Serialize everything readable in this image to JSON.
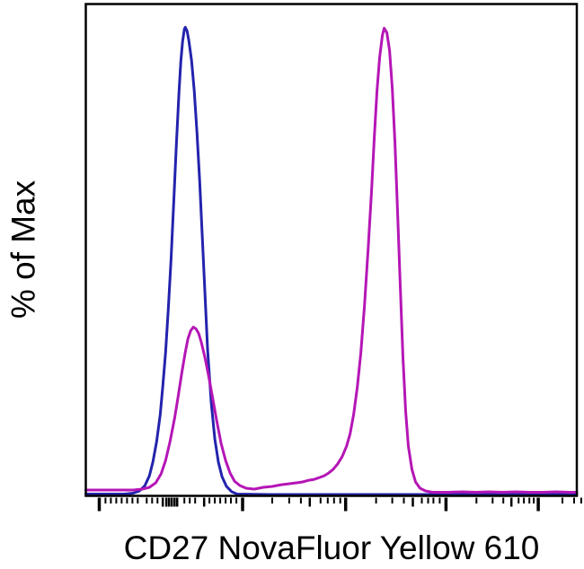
{
  "figure": {
    "background_color": "#ffffff",
    "frame_color": "#000000",
    "text_color": "#000000"
  },
  "chart_data": {
    "type": "line",
    "variant": "flow-cytometry-histogram-overlay",
    "title": "",
    "xlabel": "CD27 NovaFluor Yellow 610",
    "ylabel": "% of Max",
    "ylim": [
      0,
      100
    ],
    "grid": false,
    "legend": null,
    "x_axis": {
      "scale": "biexponential-log (no numeric tick labels shown)",
      "tick_labels": [],
      "ticks": [
        {
          "x": 2.74,
          "s": "major"
        },
        {
          "x": 4.01,
          "s": "minor"
        },
        {
          "x": 5.11,
          "s": "minor"
        },
        {
          "x": 6.2,
          "s": "minor"
        },
        {
          "x": 7.3,
          "s": "minor"
        },
        {
          "x": 8.39,
          "s": "minor"
        },
        {
          "x": 9.49,
          "s": "minor"
        },
        {
          "x": 10.58,
          "s": "minor"
        },
        {
          "x": 12.41,
          "s": "minor"
        },
        {
          "x": 13.5,
          "s": "minor"
        },
        {
          "x": 14.6,
          "s": "minor"
        },
        {
          "x": 15.69,
          "s": "mid"
        },
        {
          "x": 16.42,
          "s": "mid"
        },
        {
          "x": 16.97,
          "s": "mid"
        },
        {
          "x": 17.52,
          "s": "mid"
        },
        {
          "x": 18.07,
          "s": "mid"
        },
        {
          "x": 18.61,
          "s": "mid"
        },
        {
          "x": 20.07,
          "s": "minor"
        },
        {
          "x": 21.17,
          "s": "minor"
        },
        {
          "x": 22.26,
          "s": "minor"
        },
        {
          "x": 24.09,
          "s": "mid"
        },
        {
          "x": 25.18,
          "s": "minor"
        },
        {
          "x": 26.28,
          "s": "minor"
        },
        {
          "x": 27.37,
          "s": "minor"
        },
        {
          "x": 28.47,
          "s": "minor"
        },
        {
          "x": 29.56,
          "s": "minor"
        },
        {
          "x": 30.66,
          "s": "minor"
        },
        {
          "x": 31.93,
          "s": "major"
        },
        {
          "x": 37.96,
          "s": "minor"
        },
        {
          "x": 41.42,
          "s": "minor"
        },
        {
          "x": 43.8,
          "s": "minor"
        },
        {
          "x": 45.62,
          "s": "mid"
        },
        {
          "x": 47.81,
          "s": "minor"
        },
        {
          "x": 49.27,
          "s": "minor"
        },
        {
          "x": 50.55,
          "s": "minor"
        },
        {
          "x": 51.82,
          "s": "minor"
        },
        {
          "x": 52.92,
          "s": "major"
        },
        {
          "x": 59.12,
          "s": "minor"
        },
        {
          "x": 62.41,
          "s": "minor"
        },
        {
          "x": 64.78,
          "s": "minor"
        },
        {
          "x": 66.61,
          "s": "mid"
        },
        {
          "x": 68.43,
          "s": "minor"
        },
        {
          "x": 69.71,
          "s": "minor"
        },
        {
          "x": 70.8,
          "s": "minor"
        },
        {
          "x": 72.08,
          "s": "minor"
        },
        {
          "x": 73.36,
          "s": "major"
        },
        {
          "x": 79.56,
          "s": "minor"
        },
        {
          "x": 82.85,
          "s": "minor"
        },
        {
          "x": 85.04,
          "s": "minor"
        },
        {
          "x": 86.68,
          "s": "mid"
        },
        {
          "x": 88.14,
          "s": "minor"
        },
        {
          "x": 89.23,
          "s": "minor"
        },
        {
          "x": 90.33,
          "s": "minor"
        },
        {
          "x": 91.24,
          "s": "minor"
        },
        {
          "x": 92.15,
          "s": "major"
        },
        {
          "x": 97.08,
          "s": "minor"
        },
        {
          "x": 99.45,
          "s": "minor"
        },
        {
          "x": 100.9,
          "s": "minor"
        }
      ]
    },
    "series": [
      {
        "id": "blue",
        "name": "blue histogram (single left peak, ~95% of max at ~20% of axis)",
        "color": "#2323AD",
        "stroke_width": 3,
        "points": [
          [
            0,
            0.45
          ],
          [
            7.85,
            0.45
          ],
          [
            9.67,
            0.64
          ],
          [
            10.95,
            1.09
          ],
          [
            12.04,
            2.18
          ],
          [
            12.96,
            4.18
          ],
          [
            13.69,
            7.09
          ],
          [
            14.42,
            11.09
          ],
          [
            15.15,
            16.55
          ],
          [
            15.69,
            22.36
          ],
          [
            16.24,
            29.27
          ],
          [
            16.79,
            38.0
          ],
          [
            17.34,
            47.82
          ],
          [
            17.88,
            59.09
          ],
          [
            18.43,
            71.09
          ],
          [
            18.98,
            82.0
          ],
          [
            19.34,
            88.18
          ],
          [
            19.71,
            92.36
          ],
          [
            20.07,
            94.91
          ],
          [
            20.26,
            95.27
          ],
          [
            20.62,
            94.55
          ],
          [
            20.99,
            92.55
          ],
          [
            21.53,
            88.55
          ],
          [
            22.08,
            82.36
          ],
          [
            22.63,
            74.0
          ],
          [
            23.18,
            64.18
          ],
          [
            23.72,
            52.91
          ],
          [
            24.27,
            41.27
          ],
          [
            24.82,
            29.64
          ],
          [
            25.55,
            19.09
          ],
          [
            26.28,
            11.64
          ],
          [
            27.01,
            6.91
          ],
          [
            27.74,
            4.0
          ],
          [
            28.65,
            2.0
          ],
          [
            29.74,
            0.91
          ],
          [
            30.84,
            0.45
          ],
          [
            37.41,
            0.36
          ],
          [
            100,
            0.36
          ]
        ]
      },
      {
        "id": "magenta",
        "name": "magenta histogram (small left peak ~34% of max, tall right peak ~95% of max at ~61% of axis)",
        "color": "#B516B6",
        "stroke_width": 3,
        "points": [
          [
            0,
            1.27
          ],
          [
            9.67,
            1.27
          ],
          [
            11.5,
            1.45
          ],
          [
            12.96,
            1.82
          ],
          [
            14.23,
            2.73
          ],
          [
            15.33,
            4.55
          ],
          [
            16.24,
            7.27
          ],
          [
            17.15,
            11.09
          ],
          [
            18.07,
            15.82
          ],
          [
            18.8,
            20.18
          ],
          [
            19.53,
            24.91
          ],
          [
            20.26,
            29.27
          ],
          [
            20.8,
            32.0
          ],
          [
            21.35,
            33.64
          ],
          [
            21.9,
            34.36
          ],
          [
            22.45,
            34.0
          ],
          [
            22.99,
            33.09
          ],
          [
            23.54,
            31.27
          ],
          [
            24.27,
            28.18
          ],
          [
            25.0,
            24.55
          ],
          [
            25.73,
            20.55
          ],
          [
            26.64,
            15.45
          ],
          [
            27.55,
            10.73
          ],
          [
            28.47,
            7.27
          ],
          [
            29.38,
            4.73
          ],
          [
            30.29,
            3.09
          ],
          [
            31.39,
            2.18
          ],
          [
            32.66,
            1.64
          ],
          [
            34.31,
            1.45
          ],
          [
            36.13,
            1.82
          ],
          [
            37.96,
            2.0
          ],
          [
            39.78,
            2.36
          ],
          [
            41.42,
            2.55
          ],
          [
            42.88,
            2.73
          ],
          [
            44.16,
            2.91
          ],
          [
            45.44,
            3.27
          ],
          [
            46.53,
            3.45
          ],
          [
            47.63,
            3.82
          ],
          [
            48.54,
            4.18
          ],
          [
            49.45,
            4.73
          ],
          [
            50.36,
            5.45
          ],
          [
            51.28,
            6.55
          ],
          [
            52.19,
            8.0
          ],
          [
            53.1,
            10.18
          ],
          [
            53.83,
            12.73
          ],
          [
            54.56,
            16.73
          ],
          [
            55.29,
            22.18
          ],
          [
            56.02,
            29.09
          ],
          [
            56.75,
            38.55
          ],
          [
            57.48,
            49.82
          ],
          [
            58.21,
            62.18
          ],
          [
            58.76,
            72.91
          ],
          [
            59.31,
            82.36
          ],
          [
            59.85,
            89.27
          ],
          [
            60.4,
            93.64
          ],
          [
            60.77,
            95.09
          ],
          [
            61.31,
            94.18
          ],
          [
            61.86,
            90.55
          ],
          [
            62.41,
            82.91
          ],
          [
            62.96,
            71.82
          ],
          [
            63.5,
            57.82
          ],
          [
            64.05,
            42.73
          ],
          [
            64.6,
            28.18
          ],
          [
            65.15,
            17.27
          ],
          [
            65.69,
            10.18
          ],
          [
            66.42,
            5.45
          ],
          [
            67.15,
            2.91
          ],
          [
            68.07,
            1.64
          ],
          [
            69.16,
            1.09
          ],
          [
            70.62,
            0.82
          ],
          [
            73.91,
            0.82
          ],
          [
            76.64,
            0.91
          ],
          [
            79.38,
            0.82
          ],
          [
            82.12,
            0.91
          ],
          [
            84.85,
            0.82
          ],
          [
            87.59,
            0.91
          ],
          [
            90.33,
            0.82
          ],
          [
            93.07,
            0.82
          ],
          [
            95.8,
            0.91
          ],
          [
            98.54,
            0.82
          ],
          [
            100,
            0.82
          ]
        ]
      }
    ]
  }
}
